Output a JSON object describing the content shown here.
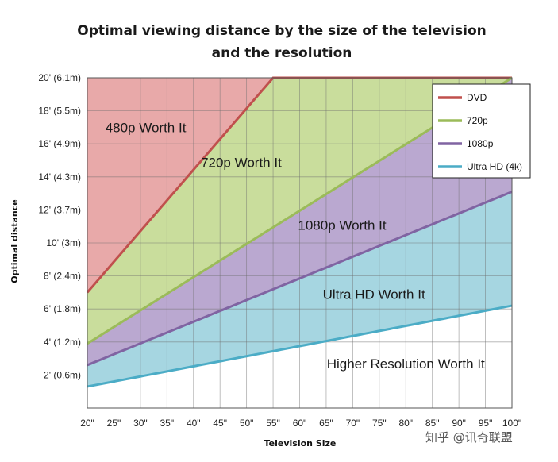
{
  "chart_data": {
    "type": "area",
    "title_line1": "Optimal viewing distance by the size of the television",
    "title_line2": "and the resolution",
    "xlabel": "Television Size",
    "ylabel": "Optimal distance",
    "x": [
      20,
      25,
      30,
      35,
      40,
      45,
      50,
      55,
      60,
      65,
      70,
      75,
      80,
      85,
      90,
      95,
      100
    ],
    "x_tick_labels": [
      "20\"",
      "25\"",
      "30\"",
      "35\"",
      "40\"",
      "45\"",
      "50\"",
      "55\"",
      "60\"",
      "65\"",
      "70\"",
      "75\"",
      "80\"",
      "85\"",
      "90\"",
      "95\"",
      "100\""
    ],
    "y_ticks": [
      2,
      4,
      6,
      8,
      10,
      12,
      14,
      16,
      18,
      20
    ],
    "y_tick_labels": [
      "2' (0.6m)",
      "4' (1.2m)",
      "6' (1.8m)",
      "8' (2.4m)",
      "10' (3m)",
      "12' (3.7m)",
      "14' (4.3m)",
      "16' (4.9m)",
      "18' (5.5m)",
      "20' (6.1m)"
    ],
    "xlim": [
      20,
      100
    ],
    "ylim": [
      0,
      20
    ],
    "grid": true,
    "legend_position": "top-right",
    "series": [
      {
        "name": "DVD",
        "color": "#c0504d",
        "x": [
          20,
          55
        ],
        "y": [
          7.0,
          20.0
        ]
      },
      {
        "name": "720p",
        "color": "#9bbb59",
        "x": [
          20,
          100
        ],
        "y": [
          3.9,
          20.0
        ]
      },
      {
        "name": "1080p",
        "color": "#8064a2",
        "x": [
          20,
          100
        ],
        "y": [
          2.6,
          13.1
        ]
      },
      {
        "name": "Ultra HD (4k)",
        "color": "#4bacc6",
        "x": [
          20,
          100
        ],
        "y": [
          1.3,
          6.2
        ]
      }
    ],
    "region_fills": [
      "#e8a9a9",
      "#c9dd9c",
      "#baa8d0",
      "#a6d6e1"
    ],
    "region_labels": [
      {
        "text": "480p Worth It",
        "x": 31,
        "y": 16.7
      },
      {
        "text": "720p Worth It",
        "x": 49,
        "y": 14.6
      },
      {
        "text": "1080p Worth It",
        "x": 68,
        "y": 10.8
      },
      {
        "text": "Ultra HD Worth It",
        "x": 74,
        "y": 6.6
      },
      {
        "text": "Higher Resolution Worth It",
        "x": 80,
        "y": 2.4
      }
    ]
  },
  "watermark": "知乎 @讯奇联盟"
}
